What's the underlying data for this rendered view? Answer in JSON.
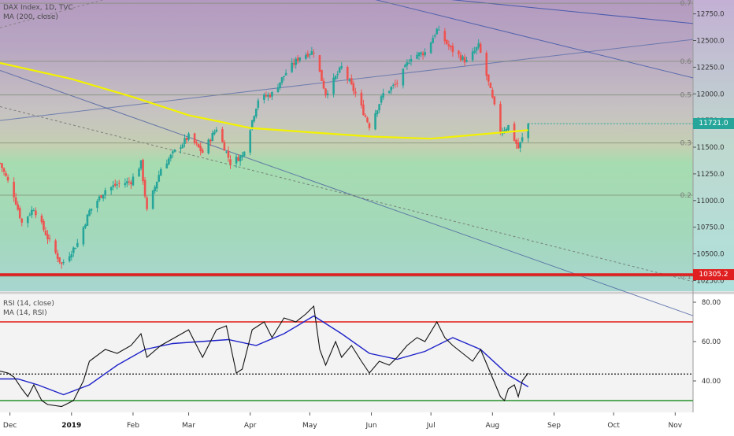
{
  "main_pane": {
    "legend_title": "DAX Index, 1D, TVC",
    "legend_ma": "MA (200, close)",
    "last_price": "11721.0",
    "support_price": "10305.2",
    "fib_labels": [
      "0.7",
      "0.6",
      "0.5",
      "0.3",
      "0.2",
      "0.1"
    ],
    "colors": {
      "up": "#26a69a",
      "down": "#ef5350",
      "ma200": "#f2f200",
      "support": "#e02020"
    }
  },
  "rsi_pane": {
    "legend_rsi": "RSI (14, close)",
    "legend_ma": "MA (14, RSI)",
    "colors": {
      "rsi": "#111111",
      "ma": "#1e22c8",
      "overbought": "#e53935",
      "oversold": "#43a047"
    }
  },
  "chart_data": [
    {
      "type": "candlestick",
      "title": "DAX Index, 1D, TVC",
      "ylim": [
        10150,
        12880
      ],
      "y_ticks": [
        "12750.0",
        "12500.0",
        "12250.0",
        "12000.0",
        "11750.0",
        "11500.0",
        "11250.0",
        "11000.0",
        "10750.0",
        "10500.0",
        "10250.0"
      ],
      "x_ticks": [
        "Dec",
        "2019",
        "Feb",
        "Mar",
        "Apr",
        "May",
        "Jun",
        "Jul",
        "Aug",
        "Sep",
        "Oct",
        "Nov"
      ],
      "x_range": [
        "2018-11-26",
        "2019-11-10"
      ],
      "close_path": [
        [
          "2018-11-26",
          11350
        ],
        [
          "2018-12-03",
          11050
        ],
        [
          "2018-12-07",
          10790
        ],
        [
          "2018-12-13",
          10930
        ],
        [
          "2018-12-20",
          10650
        ],
        [
          "2018-12-27",
          10400
        ],
        [
          "2019-01-04",
          10600
        ],
        [
          "2019-01-10",
          10900
        ],
        [
          "2019-01-18",
          11100
        ],
        [
          "2019-01-24",
          11150
        ],
        [
          "2019-01-31",
          11180
        ],
        [
          "2019-02-05",
          11350
        ],
        [
          "2019-02-08",
          10900
        ],
        [
          "2019-02-15",
          11300
        ],
        [
          "2019-02-22",
          11460
        ],
        [
          "2019-03-01",
          11600
        ],
        [
          "2019-03-08",
          11450
        ],
        [
          "2019-03-15",
          11680
        ],
        [
          "2019-03-22",
          11360
        ],
        [
          "2019-03-28",
          11420
        ],
        [
          "2019-04-05",
          11950
        ],
        [
          "2019-04-12",
          12000
        ],
        [
          "2019-04-19",
          12200
        ],
        [
          "2019-04-26",
          12350
        ],
        [
          "2019-05-03",
          12400
        ],
        [
          "2019-05-09",
          12000
        ],
        [
          "2019-05-17",
          12250
        ],
        [
          "2019-05-24",
          12000
        ],
        [
          "2019-05-31",
          11700
        ],
        [
          "2019-06-07",
          12000
        ],
        [
          "2019-06-14",
          12100
        ],
        [
          "2019-06-21",
          12350
        ],
        [
          "2019-06-28",
          12390
        ],
        [
          "2019-07-04",
          12600
        ],
        [
          "2019-07-11",
          12420
        ],
        [
          "2019-07-19",
          12300
        ],
        [
          "2019-07-25",
          12450
        ],
        [
          "2019-07-30",
          12100
        ],
        [
          "2019-08-05",
          11650
        ],
        [
          "2019-08-09",
          11700
        ],
        [
          "2019-08-14",
          11490
        ],
        [
          "2019-08-19",
          11721
        ]
      ],
      "ma200_path": [
        [
          "2018-11-26",
          12290
        ],
        [
          "2019-01-01",
          12140
        ],
        [
          "2019-02-01",
          11970
        ],
        [
          "2019-03-01",
          11800
        ],
        [
          "2019-04-01",
          11680
        ],
        [
          "2019-05-01",
          11640
        ],
        [
          "2019-06-01",
          11600
        ],
        [
          "2019-07-01",
          11580
        ],
        [
          "2019-08-01",
          11630
        ],
        [
          "2019-08-19",
          11660
        ]
      ],
      "fib_levels": [
        {
          "label": "0.7",
          "value": 12850
        },
        {
          "label": "0.6",
          "value": 12305
        },
        {
          "label": "0.5",
          "value": 11990
        },
        {
          "label": "0.3",
          "value": 11540
        },
        {
          "label": "0.2",
          "value": 11050
        },
        {
          "label": "0.1",
          "value": 10290
        }
      ],
      "last_price": 11721.0,
      "support_level": 10305.2
    },
    {
      "type": "line",
      "title": "RSI (14, close)",
      "ylim": [
        24,
        84
      ],
      "y_ticks": [
        "80.00",
        "60.00",
        "40.00"
      ],
      "overbought": 70,
      "oversold": 30,
      "midline": 43.5,
      "series": [
        {
          "name": "RSI (14, close)",
          "points": [
            [
              "2018-11-26",
              45
            ],
            [
              "2018-11-30",
              44
            ],
            [
              "2018-12-03",
              42
            ],
            [
              "2018-12-07",
              36
            ],
            [
              "2018-12-10",
              32
            ],
            [
              "2018-12-13",
              38
            ],
            [
              "2018-12-17",
              30
            ],
            [
              "2018-12-20",
              28
            ],
            [
              "2018-12-27",
              27
            ],
            [
              "2019-01-02",
              30
            ],
            [
              "2019-01-07",
              40
            ],
            [
              "2019-01-10",
              50
            ],
            [
              "2019-01-18",
              56
            ],
            [
              "2019-01-24",
              54
            ],
            [
              "2019-01-31",
              58
            ],
            [
              "2019-02-05",
              64
            ],
            [
              "2019-02-08",
              52
            ],
            [
              "2019-02-15",
              58
            ],
            [
              "2019-02-22",
              62
            ],
            [
              "2019-03-01",
              66
            ],
            [
              "2019-03-05",
              58
            ],
            [
              "2019-03-08",
              52
            ],
            [
              "2019-03-15",
              66
            ],
            [
              "2019-03-20",
              68
            ],
            [
              "2019-03-25",
              44
            ],
            [
              "2019-03-28",
              46
            ],
            [
              "2019-04-02",
              66
            ],
            [
              "2019-04-08",
              70
            ],
            [
              "2019-04-12",
              62
            ],
            [
              "2019-04-18",
              72
            ],
            [
              "2019-04-24",
              70
            ],
            [
              "2019-04-29",
              74
            ],
            [
              "2019-05-03",
              78
            ],
            [
              "2019-05-06",
              56
            ],
            [
              "2019-05-09",
              48
            ],
            [
              "2019-05-14",
              60
            ],
            [
              "2019-05-17",
              52
            ],
            [
              "2019-05-22",
              58
            ],
            [
              "2019-05-27",
              50
            ],
            [
              "2019-05-31",
              44
            ],
            [
              "2019-06-05",
              50
            ],
            [
              "2019-06-10",
              48
            ],
            [
              "2019-06-14",
              52
            ],
            [
              "2019-06-19",
              58
            ],
            [
              "2019-06-24",
              62
            ],
            [
              "2019-06-28",
              60
            ],
            [
              "2019-07-04",
              70
            ],
            [
              "2019-07-08",
              62
            ],
            [
              "2019-07-12",
              58
            ],
            [
              "2019-07-17",
              54
            ],
            [
              "2019-07-22",
              50
            ],
            [
              "2019-07-26",
              56
            ],
            [
              "2019-07-31",
              44
            ],
            [
              "2019-08-05",
              32
            ],
            [
              "2019-08-07",
              30
            ],
            [
              "2019-08-09",
              36
            ],
            [
              "2019-08-12",
              38
            ],
            [
              "2019-08-14",
              32
            ],
            [
              "2019-08-16",
              40
            ],
            [
              "2019-08-19",
              44
            ]
          ]
        },
        {
          "name": "MA (14, RSI)",
          "points": [
            [
              "2018-11-26",
              41
            ],
            [
              "2018-12-05",
              41
            ],
            [
              "2018-12-15",
              38
            ],
            [
              "2018-12-28",
              33
            ],
            [
              "2019-01-10",
              38
            ],
            [
              "2019-01-24",
              48
            ],
            [
              "2019-02-07",
              56
            ],
            [
              "2019-02-21",
              59
            ],
            [
              "2019-03-07",
              60
            ],
            [
              "2019-03-21",
              61
            ],
            [
              "2019-04-04",
              58
            ],
            [
              "2019-04-18",
              64
            ],
            [
              "2019-05-03",
              73
            ],
            [
              "2019-05-17",
              64
            ],
            [
              "2019-05-31",
              54
            ],
            [
              "2019-06-14",
              51
            ],
            [
              "2019-06-28",
              55
            ],
            [
              "2019-07-12",
              62
            ],
            [
              "2019-07-26",
              56
            ],
            [
              "2019-08-09",
              43
            ],
            [
              "2019-08-19",
              37
            ]
          ]
        }
      ]
    }
  ]
}
